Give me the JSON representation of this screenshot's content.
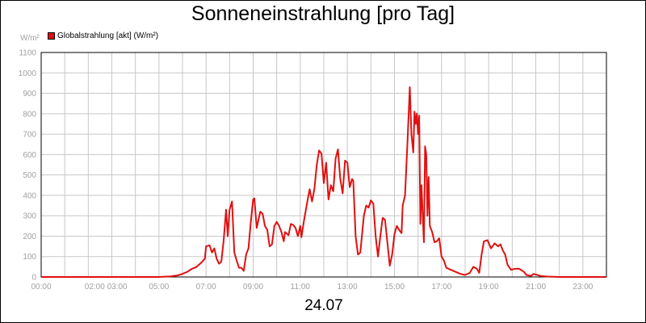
{
  "chart_data": {
    "type": "line",
    "title": "Sonneneinstrahlung [pro Tag]",
    "unit_label": "W/m²",
    "date_label": "24.07",
    "legend": {
      "placement": "top-left"
    },
    "grid": true,
    "ylim": [
      0,
      1100
    ],
    "xlim": [
      0,
      24
    ],
    "yticks": [
      "0",
      "100",
      "200",
      "300",
      "400",
      "500",
      "600",
      "700",
      "800",
      "900",
      "1000",
      "1100"
    ],
    "xtick_labels": [
      {
        "at": 0,
        "label": "00:00"
      },
      {
        "at": 2.75,
        "label": "02:00 03:00"
      },
      {
        "at": 5,
        "label": "05:00"
      },
      {
        "at": 7,
        "label": "07:00"
      },
      {
        "at": 9,
        "label": "09:00"
      },
      {
        "at": 11,
        "label": "11:00"
      },
      {
        "at": 13,
        "label": "13:00"
      },
      {
        "at": 15,
        "label": "15:00"
      },
      {
        "at": 17,
        "label": "17:00"
      },
      {
        "at": 19,
        "label": "19:00"
      },
      {
        "at": 21,
        "label": "21:00"
      },
      {
        "at": 23,
        "label": "23:00"
      }
    ],
    "series": [
      {
        "name": "Globalstrahlung [akt] (W/m²)",
        "color": "#e01010",
        "points": [
          [
            0.0,
            0
          ],
          [
            5.0,
            0
          ],
          [
            5.5,
            3
          ],
          [
            5.8,
            8
          ],
          [
            6.0,
            15
          ],
          [
            6.2,
            25
          ],
          [
            6.4,
            40
          ],
          [
            6.6,
            50
          ],
          [
            6.8,
            70
          ],
          [
            6.95,
            90
          ],
          [
            7.0,
            150
          ],
          [
            7.15,
            155
          ],
          [
            7.25,
            120
          ],
          [
            7.35,
            140
          ],
          [
            7.45,
            90
          ],
          [
            7.55,
            65
          ],
          [
            7.65,
            75
          ],
          [
            7.75,
            180
          ],
          [
            7.85,
            330
          ],
          [
            7.92,
            200
          ],
          [
            8.0,
            330
          ],
          [
            8.1,
            370
          ],
          [
            8.2,
            120
          ],
          [
            8.3,
            80
          ],
          [
            8.4,
            45
          ],
          [
            8.5,
            45
          ],
          [
            8.6,
            30
          ],
          [
            8.7,
            110
          ],
          [
            8.8,
            140
          ],
          [
            8.9,
            270
          ],
          [
            9.0,
            380
          ],
          [
            9.05,
            385
          ],
          [
            9.15,
            240
          ],
          [
            9.3,
            320
          ],
          [
            9.4,
            310
          ],
          [
            9.5,
            250
          ],
          [
            9.6,
            230
          ],
          [
            9.7,
            150
          ],
          [
            9.8,
            160
          ],
          [
            9.9,
            250
          ],
          [
            10.0,
            270
          ],
          [
            10.1,
            250
          ],
          [
            10.2,
            220
          ],
          [
            10.3,
            175
          ],
          [
            10.35,
            220
          ],
          [
            10.5,
            205
          ],
          [
            10.6,
            260
          ],
          [
            10.7,
            255
          ],
          [
            10.8,
            240
          ],
          [
            10.9,
            200
          ],
          [
            11.0,
            250
          ],
          [
            11.05,
            195
          ],
          [
            11.15,
            270
          ],
          [
            11.3,
            370
          ],
          [
            11.4,
            430
          ],
          [
            11.5,
            370
          ],
          [
            11.6,
            430
          ],
          [
            11.7,
            550
          ],
          [
            11.8,
            620
          ],
          [
            11.9,
            605
          ],
          [
            12.0,
            460
          ],
          [
            12.1,
            560
          ],
          [
            12.2,
            380
          ],
          [
            12.3,
            450
          ],
          [
            12.4,
            420
          ],
          [
            12.5,
            580
          ],
          [
            12.6,
            625
          ],
          [
            12.7,
            480
          ],
          [
            12.8,
            410
          ],
          [
            12.9,
            570
          ],
          [
            13.0,
            560
          ],
          [
            13.1,
            440
          ],
          [
            13.2,
            480
          ],
          [
            13.25,
            470
          ],
          [
            13.35,
            200
          ],
          [
            13.45,
            110
          ],
          [
            13.55,
            120
          ],
          [
            13.7,
            300
          ],
          [
            13.8,
            350
          ],
          [
            13.9,
            340
          ],
          [
            14.0,
            375
          ],
          [
            14.1,
            360
          ],
          [
            14.2,
            200
          ],
          [
            14.3,
            100
          ],
          [
            14.4,
            200
          ],
          [
            14.5,
            290
          ],
          [
            14.6,
            280
          ],
          [
            14.7,
            170
          ],
          [
            14.8,
            55
          ],
          [
            14.9,
            110
          ],
          [
            15.0,
            210
          ],
          [
            15.1,
            250
          ],
          [
            15.2,
            230
          ],
          [
            15.3,
            215
          ],
          [
            15.35,
            350
          ],
          [
            15.45,
            400
          ],
          [
            15.55,
            650
          ],
          [
            15.65,
            930
          ],
          [
            15.72,
            700
          ],
          [
            15.8,
            610
          ],
          [
            15.85,
            810
          ],
          [
            15.9,
            750
          ],
          [
            15.95,
            800
          ],
          [
            16.0,
            700
          ],
          [
            16.05,
            790
          ],
          [
            16.1,
            260
          ],
          [
            16.15,
            450
          ],
          [
            16.2,
            300
          ],
          [
            16.25,
            170
          ],
          [
            16.3,
            640
          ],
          [
            16.35,
            600
          ],
          [
            16.4,
            300
          ],
          [
            16.45,
            490
          ],
          [
            16.5,
            250
          ],
          [
            16.6,
            220
          ],
          [
            16.7,
            170
          ],
          [
            16.8,
            175
          ],
          [
            16.9,
            190
          ],
          [
            17.0,
            100
          ],
          [
            17.1,
            80
          ],
          [
            17.2,
            45
          ],
          [
            17.4,
            35
          ],
          [
            17.6,
            25
          ],
          [
            17.8,
            15
          ],
          [
            18.0,
            10
          ],
          [
            18.2,
            20
          ],
          [
            18.35,
            50
          ],
          [
            18.5,
            40
          ],
          [
            18.6,
            20
          ],
          [
            18.7,
            110
          ],
          [
            18.8,
            175
          ],
          [
            18.95,
            180
          ],
          [
            19.1,
            140
          ],
          [
            19.25,
            165
          ],
          [
            19.4,
            150
          ],
          [
            19.5,
            160
          ],
          [
            19.6,
            130
          ],
          [
            19.7,
            110
          ],
          [
            19.8,
            60
          ],
          [
            19.95,
            35
          ],
          [
            20.1,
            40
          ],
          [
            20.3,
            40
          ],
          [
            20.5,
            25
          ],
          [
            20.6,
            10
          ],
          [
            20.8,
            5
          ],
          [
            20.9,
            15
          ],
          [
            21.0,
            12
          ],
          [
            21.2,
            5
          ],
          [
            21.5,
            2
          ],
          [
            22.0,
            0
          ],
          [
            24.0,
            0
          ]
        ]
      }
    ]
  }
}
